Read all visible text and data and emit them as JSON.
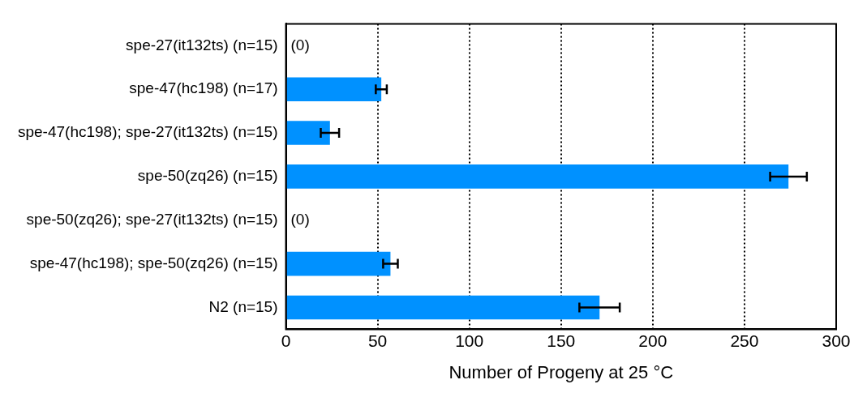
{
  "chart_data": {
    "type": "bar",
    "orientation": "horizontal",
    "xlabel": "Number of Progeny at 25 °C",
    "categories": [
      "spe-27(it132ts) (n=15)",
      "spe-47(hc198) (n=17)",
      "spe-47(hc198); spe-27(it132ts) (n=15)",
      "spe-50(zq26) (n=15)",
      "spe-50(zq26); spe-27(it132ts) (n=15)",
      "spe-47(hc198); spe-50(zq26) (n=15)",
      "N2 (n=15)"
    ],
    "values": [
      0,
      52,
      24,
      274,
      0,
      57,
      171
    ],
    "errors": [
      null,
      3,
      5,
      10,
      null,
      4,
      11
    ],
    "value_labels": [
      "(0)",
      null,
      null,
      null,
      "(0)",
      null,
      null
    ],
    "color": "#0091ff",
    "xlim": [
      0,
      300
    ],
    "xticks": [
      0,
      50,
      100,
      150,
      200,
      250,
      300
    ],
    "grid": "x",
    "legend": false
  }
}
